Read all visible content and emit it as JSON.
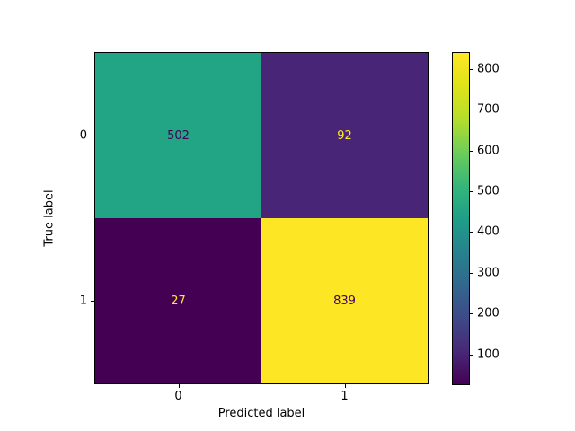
{
  "chart_data": {
    "type": "heatmap",
    "title": "",
    "xlabel": "Predicted label",
    "ylabel": "True label",
    "x_tick_labels": [
      "0",
      "1"
    ],
    "y_tick_labels": [
      "0",
      "1"
    ],
    "matrix": [
      [
        502,
        92
      ],
      [
        27,
        839
      ]
    ],
    "cell_text": [
      [
        "502",
        "92"
      ],
      [
        "27",
        "839"
      ]
    ],
    "vmin": 27,
    "vmax": 839,
    "colormap": "viridis",
    "cell_colors": [
      [
        "#21a585",
        "#482576"
      ],
      [
        "#440154",
        "#fde725"
      ]
    ],
    "cell_text_colors": [
      [
        "#440154",
        "#fde725"
      ],
      [
        "#fde725",
        "#440154"
      ]
    ],
    "colorbar_ticks": [
      100,
      200,
      300,
      400,
      500,
      600,
      700,
      800
    ],
    "colorbar_tick_labels": [
      "100",
      "200",
      "300",
      "400",
      "500",
      "600",
      "700",
      "800"
    ],
    "colormap_stops": [
      "#440154",
      "#482878",
      "#3e4989",
      "#31688e",
      "#26828e",
      "#1f9e89",
      "#35b779",
      "#6dcd59",
      "#b4de2c",
      "#dfe318",
      "#fde725"
    ],
    "legend_position": "right-colorbar",
    "grid": false,
    "background_color": "#ffffff",
    "spine_color": "#000000"
  }
}
